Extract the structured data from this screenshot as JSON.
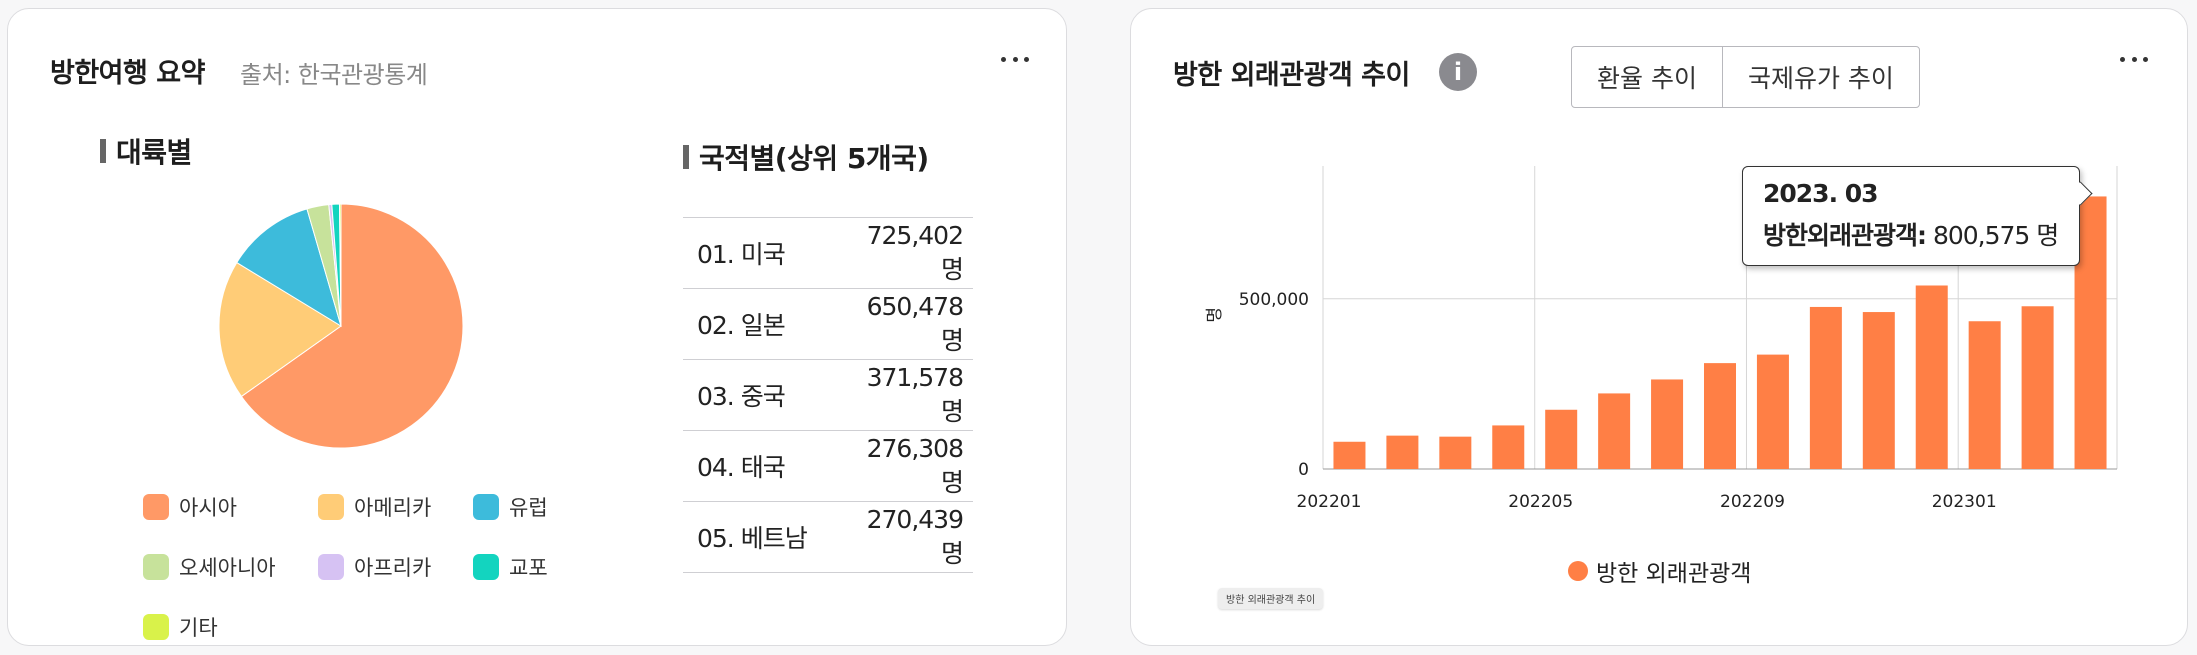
{
  "left_card": {
    "title": "방한여행 요약",
    "source": "출처: 한국관광통계",
    "continent_title": "대륙별",
    "nation_title": "국적별(상위 5개국)",
    "nations": [
      {
        "name": "01. 미국",
        "value": "725,402명"
      },
      {
        "name": "02. 일본",
        "value": "650,478명"
      },
      {
        "name": "03. 중국",
        "value": "371,578명"
      },
      {
        "name": "04. 태국",
        "value": "276,308명"
      },
      {
        "name": "05. 베트남",
        "value": "270,439명"
      }
    ],
    "legend": [
      "아시아",
      "아메리카",
      "유럽",
      "오세아니아",
      "아프리카",
      "교포",
      "기타"
    ]
  },
  "right_card": {
    "title": "방한 외래관광객 추이",
    "info_icon": "info-icon",
    "tabs": [
      "환율 추이",
      "국제유가 추이"
    ],
    "tooltip": {
      "date": "2023. 03",
      "label": "방한외래관광객:",
      "value": "800,575 명"
    },
    "caption": "방한 외래관광객 추이",
    "legend_label": "방한 외래관광객"
  },
  "chart_data": [
    {
      "type": "pie",
      "title": "대륙별",
      "labels": [
        "아시아",
        "아메리카",
        "유럽",
        "오세아니아",
        "아프리카",
        "교포",
        "기타"
      ],
      "values": [
        65.2,
        18.5,
        11.8,
        2.9,
        0.4,
        1.0,
        0.2
      ],
      "colors": [
        "#FF9966",
        "#FFCC77",
        "#3DBBDB",
        "#C7E29B",
        "#D6C2F3",
        "#13D4BF",
        "#D9F24A"
      ]
    },
    {
      "type": "bar",
      "title": "",
      "ylabel": "명",
      "xlabel": "",
      "categories": [
        "202201",
        "202202",
        "202203",
        "202204",
        "202205",
        "202206",
        "202207",
        "202208",
        "202209",
        "202210",
        "202211",
        "202212",
        "202301",
        "202302",
        "202303"
      ],
      "x_tick_labels": [
        "202201",
        "202205",
        "202209",
        "202301"
      ],
      "y_tick_labels": [
        "0",
        "500,000"
      ],
      "series": [
        {
          "name": "방한 외래관광객",
          "color": "#FF7F45",
          "values": [
            80000,
            98000,
            95000,
            128000,
            174000,
            222000,
            263000,
            311000,
            336000,
            476000,
            461000,
            539000,
            434000,
            478000,
            800575
          ]
        }
      ],
      "ylim": [
        0,
        890000
      ],
      "grid": true,
      "legend_position": "bottom"
    }
  ]
}
